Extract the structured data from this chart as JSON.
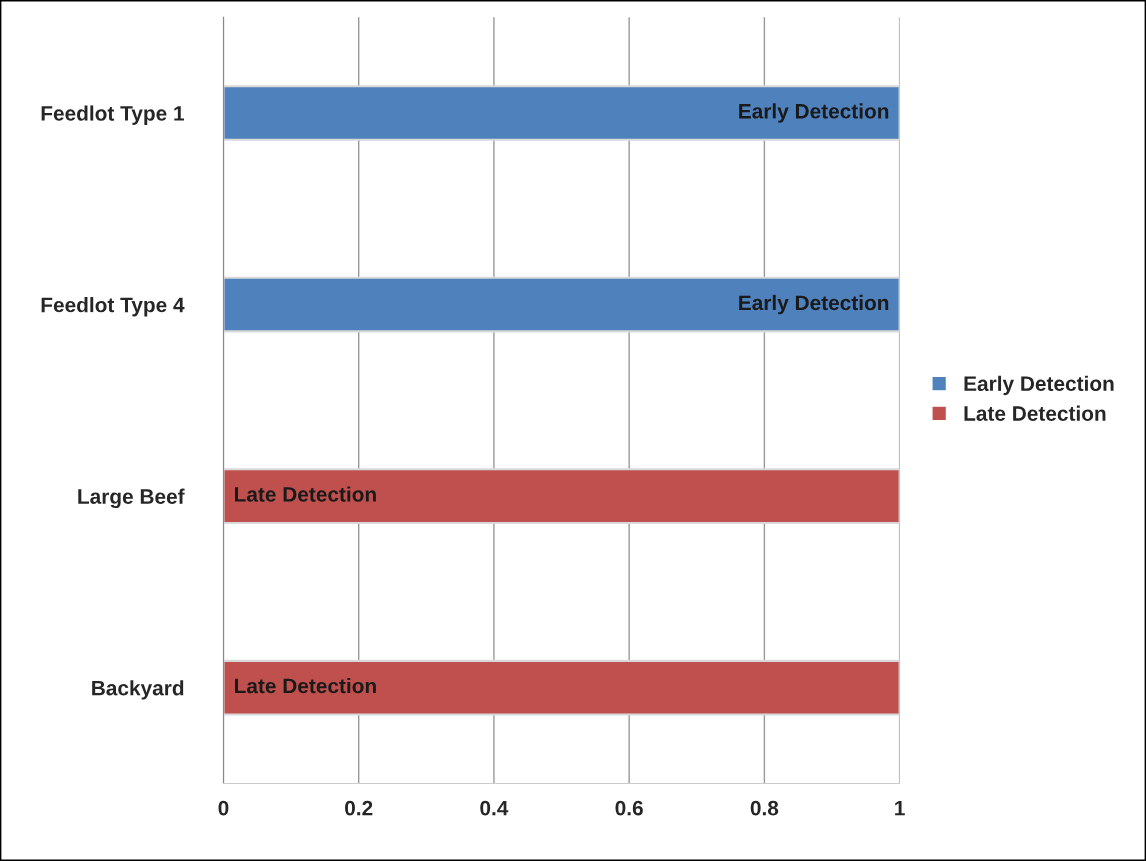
{
  "chart_data": {
    "type": "bar",
    "orientation": "horizontal",
    "stacked": true,
    "categories": [
      "Feedlot Type 1",
      "Feedlot Type 4",
      "Large Beef",
      "Backyard"
    ],
    "series": [
      {
        "name": "Early Detection",
        "color": "#4f81bd",
        "values": [
          1,
          1,
          null,
          null
        ],
        "value_labels": [
          "Early Detection",
          "Early Detection",
          null,
          null
        ]
      },
      {
        "name": "Late Detection",
        "color": "#c0504d",
        "values": [
          null,
          null,
          1,
          1
        ],
        "value_labels": [
          null,
          null,
          "Late Detection",
          "Late Detection"
        ]
      }
    ],
    "xlim": [
      0,
      1
    ],
    "xticks": [
      0,
      0.2,
      0.4,
      0.6,
      0.8,
      1
    ],
    "grid": "x",
    "legend": "right"
  }
}
